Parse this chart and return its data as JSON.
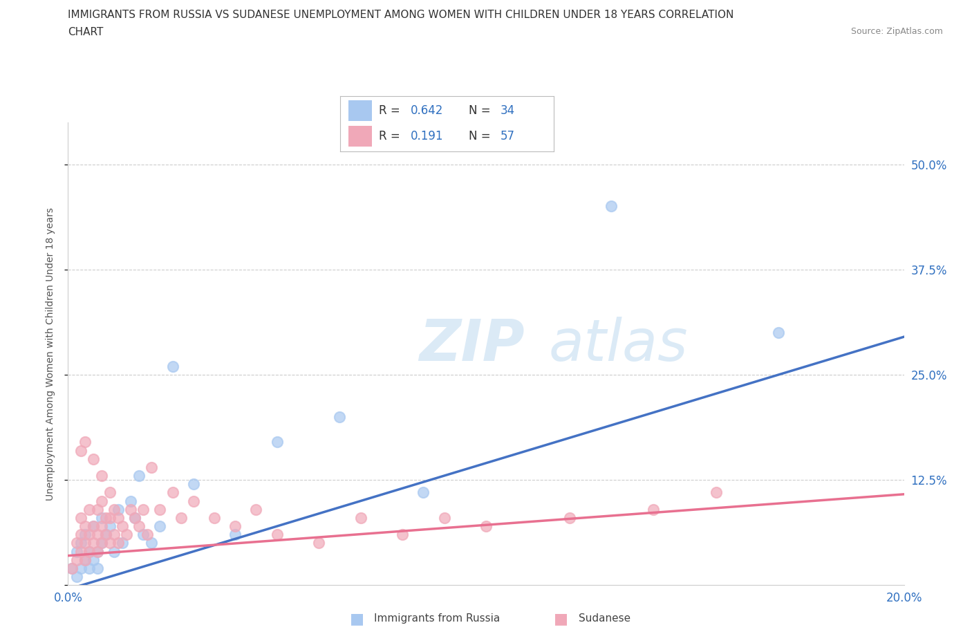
{
  "title_line1": "IMMIGRANTS FROM RUSSIA VS SUDANESE UNEMPLOYMENT AMONG WOMEN WITH CHILDREN UNDER 18 YEARS CORRELATION",
  "title_line2": "CHART",
  "source": "Source: ZipAtlas.com",
  "ylabel": "Unemployment Among Women with Children Under 18 years",
  "xlim": [
    0.0,
    0.2
  ],
  "ylim": [
    0.0,
    0.55
  ],
  "yticks": [
    0.0,
    0.125,
    0.25,
    0.375,
    0.5
  ],
  "ytick_labels": [
    "",
    "12.5%",
    "25.0%",
    "37.5%",
    "50.0%"
  ],
  "xticks": [
    0.0,
    0.05,
    0.1,
    0.15,
    0.2
  ],
  "xtick_labels": [
    "0.0%",
    "",
    "",
    "",
    "20.0%"
  ],
  "background_color": "#ffffff",
  "watermark_part1": "ZIP",
  "watermark_part2": "atlas",
  "russia_color": "#a8c8f0",
  "sudanese_color": "#f0a8b8",
  "russia_line_color": "#4472c4",
  "sudanese_line_color": "#e87090",
  "legend_text_color": "#3070c0",
  "grid_color": "#cccccc",
  "title_color": "#333333",
  "axis_label_color": "#555555",
  "russia_trend_x": [
    0.0,
    0.2
  ],
  "russia_trend_y": [
    -0.005,
    0.295
  ],
  "sudanese_trend_x": [
    0.0,
    0.2
  ],
  "sudanese_trend_y": [
    0.035,
    0.108
  ],
  "russia_scatter_x": [
    0.001,
    0.002,
    0.002,
    0.003,
    0.003,
    0.004,
    0.004,
    0.005,
    0.005,
    0.006,
    0.006,
    0.007,
    0.007,
    0.008,
    0.008,
    0.009,
    0.01,
    0.011,
    0.012,
    0.013,
    0.015,
    0.016,
    0.017,
    0.018,
    0.02,
    0.022,
    0.025,
    0.03,
    0.04,
    0.05,
    0.065,
    0.085,
    0.13,
    0.17
  ],
  "russia_scatter_y": [
    0.02,
    0.01,
    0.04,
    0.02,
    0.05,
    0.03,
    0.06,
    0.02,
    0.04,
    0.03,
    0.07,
    0.04,
    0.02,
    0.05,
    0.08,
    0.06,
    0.07,
    0.04,
    0.09,
    0.05,
    0.1,
    0.08,
    0.13,
    0.06,
    0.05,
    0.07,
    0.26,
    0.12,
    0.06,
    0.17,
    0.2,
    0.11,
    0.45,
    0.3
  ],
  "sudanese_scatter_x": [
    0.001,
    0.002,
    0.002,
    0.003,
    0.003,
    0.003,
    0.004,
    0.004,
    0.004,
    0.005,
    0.005,
    0.005,
    0.006,
    0.006,
    0.007,
    0.007,
    0.007,
    0.008,
    0.008,
    0.008,
    0.009,
    0.009,
    0.01,
    0.01,
    0.011,
    0.011,
    0.012,
    0.012,
    0.013,
    0.014,
    0.015,
    0.016,
    0.017,
    0.018,
    0.019,
    0.02,
    0.022,
    0.025,
    0.027,
    0.03,
    0.035,
    0.04,
    0.045,
    0.05,
    0.06,
    0.07,
    0.08,
    0.09,
    0.1,
    0.12,
    0.14,
    0.155,
    0.003,
    0.004,
    0.006,
    0.008,
    0.01
  ],
  "sudanese_scatter_y": [
    0.02,
    0.03,
    0.05,
    0.04,
    0.06,
    0.08,
    0.03,
    0.05,
    0.07,
    0.04,
    0.06,
    0.09,
    0.05,
    0.07,
    0.04,
    0.06,
    0.09,
    0.05,
    0.07,
    0.1,
    0.06,
    0.08,
    0.05,
    0.08,
    0.06,
    0.09,
    0.05,
    0.08,
    0.07,
    0.06,
    0.09,
    0.08,
    0.07,
    0.09,
    0.06,
    0.14,
    0.09,
    0.11,
    0.08,
    0.1,
    0.08,
    0.07,
    0.09,
    0.06,
    0.05,
    0.08,
    0.06,
    0.08,
    0.07,
    0.08,
    0.09,
    0.11,
    0.16,
    0.17,
    0.15,
    0.13,
    0.11
  ]
}
